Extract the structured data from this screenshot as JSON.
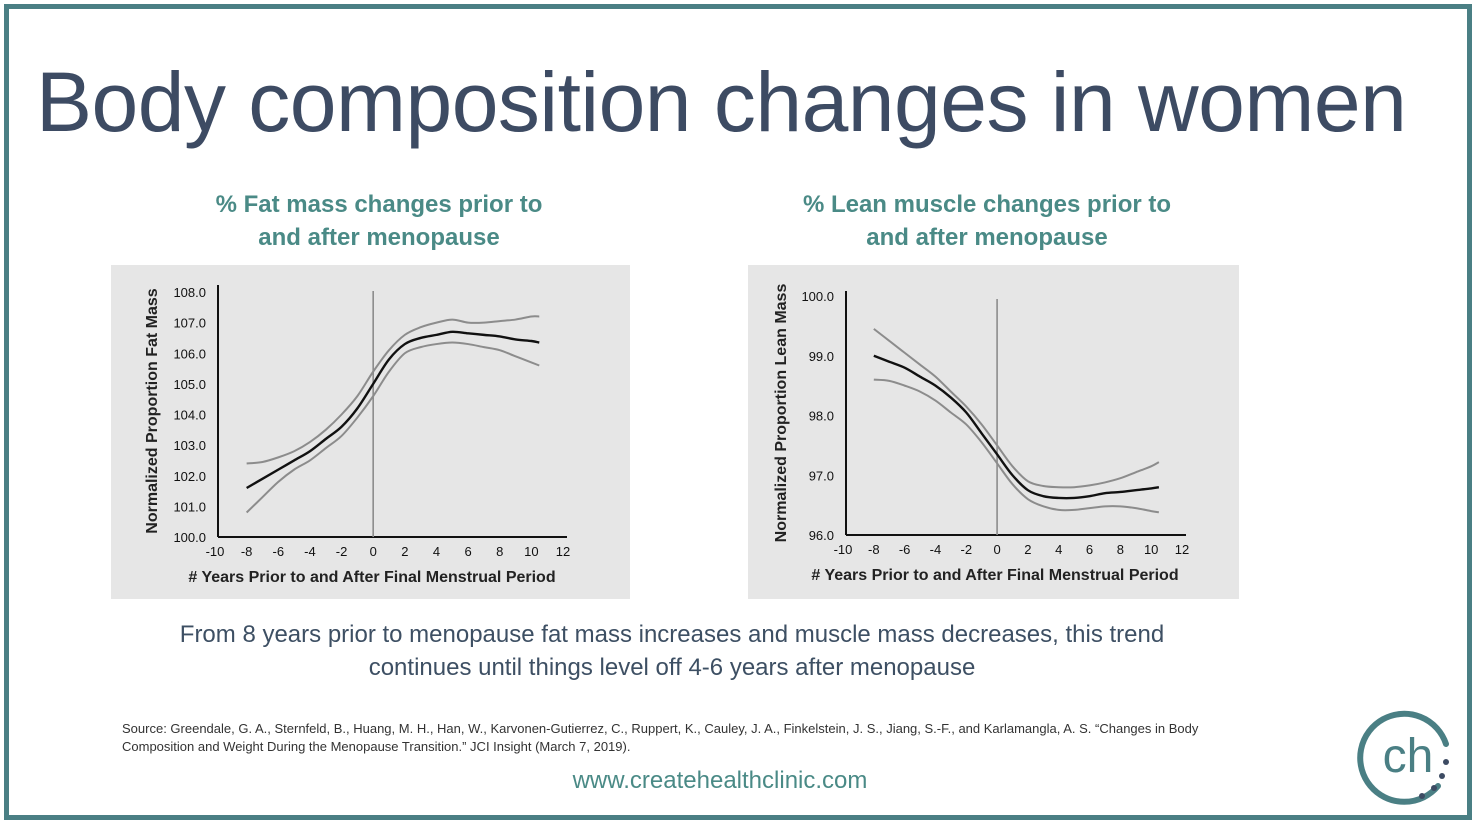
{
  "slide": {
    "title": "Body composition changes in women",
    "summary_lines": [
      "From 8 years prior to menopause fat mass increases and muscle mass decreases, this trend",
      "continues until things level off 4-6 years after menopause"
    ],
    "source_lines": [
      "Source: Greendale, G. A., Sternfeld, B., Huang, M. H., Han, W., Karvonen-Gutierrez, C., Ruppert, K., Cauley, J. A., Finkelstein, J. S., Jiang, S.-F., and Karlamangla, A. S. “Changes in Body",
      "Composition and Weight During the Menopause Transition.” JCI Insight (March 7, 2019)."
    ],
    "website": "www.createhealthclinic.com",
    "logo_text": "ch",
    "colors": {
      "border": "#4a7f84",
      "title": "#3d4b63",
      "accent": "#4a8a86",
      "chart_bg": "#e6e6e6"
    },
    "logo_icon": "ch-circle-logo-icon"
  },
  "chart_data": [
    {
      "type": "line",
      "title_lines": [
        "% Fat mass changes prior to",
        "and after menopause"
      ],
      "xlabel": "# Years Prior to and After Final Menstrual Period",
      "ylabel": "Normalized Proportion Fat Mass",
      "xlim": [
        -10,
        12
      ],
      "ylim": [
        100.0,
        108.0
      ],
      "x_ticks": [
        "-10",
        "-8",
        "-6",
        "-4",
        "-2",
        "0",
        "2",
        "4",
        "6",
        "8",
        "10",
        "12"
      ],
      "y_ticks": [
        "100.0",
        "101.0",
        "102.0",
        "103.0",
        "104.0",
        "105.0",
        "106.0",
        "107.0",
        "108.0"
      ],
      "reference_line_x": 0,
      "series": [
        {
          "role": "estimate",
          "color": "#111111",
          "x": [
            -8,
            -7,
            -6,
            -5,
            -4,
            -3,
            -2,
            -1,
            0,
            1,
            2,
            3,
            4,
            5,
            6,
            7,
            8,
            9,
            10,
            10.5
          ],
          "y": [
            101.6,
            101.9,
            102.2,
            102.5,
            102.8,
            103.2,
            103.6,
            104.2,
            105.0,
            105.8,
            106.3,
            106.5,
            106.6,
            106.7,
            106.65,
            106.6,
            106.55,
            106.45,
            106.4,
            106.35
          ]
        },
        {
          "role": "upper-ci",
          "color": "#8c8c8c",
          "x": [
            -8,
            -7,
            -6,
            -5,
            -4,
            -3,
            -2,
            -1,
            0,
            1,
            2,
            3,
            4,
            5,
            6,
            7,
            8,
            9,
            10,
            10.5
          ],
          "y": [
            102.4,
            102.45,
            102.6,
            102.8,
            103.1,
            103.5,
            104.0,
            104.6,
            105.4,
            106.1,
            106.6,
            106.85,
            107.0,
            107.1,
            107.0,
            107.0,
            107.05,
            107.1,
            107.2,
            107.2
          ]
        },
        {
          "role": "lower-ci",
          "color": "#8c8c8c",
          "x": [
            -8,
            -7,
            -6,
            -5,
            -4,
            -3,
            -2,
            -1,
            0,
            1,
            2,
            3,
            4,
            5,
            6,
            7,
            8,
            9,
            10,
            10.5
          ],
          "y": [
            100.8,
            101.3,
            101.8,
            102.2,
            102.5,
            102.9,
            103.3,
            103.9,
            104.6,
            105.4,
            106.0,
            106.2,
            106.3,
            106.35,
            106.3,
            106.2,
            106.1,
            105.9,
            105.7,
            105.6
          ]
        }
      ]
    },
    {
      "type": "line",
      "title_lines": [
        "% Lean muscle changes prior to",
        "and after menopause"
      ],
      "xlabel": "# Years Prior to and After Final Menstrual Period",
      "ylabel": "Normalized Proportion Lean Mass",
      "xlim": [
        -10,
        12
      ],
      "ylim": [
        96.0,
        100.0
      ],
      "x_ticks": [
        "-10",
        "-8",
        "-6",
        "-4",
        "-2",
        "0",
        "2",
        "4",
        "6",
        "8",
        "10",
        "12"
      ],
      "y_ticks": [
        "96.0",
        "97.0",
        "98.0",
        "99.0",
        "100.0"
      ],
      "reference_line_x": 0,
      "series": [
        {
          "role": "estimate",
          "color": "#111111",
          "x": [
            -8,
            -7,
            -6,
            -5,
            -4,
            -3,
            -2,
            -1,
            0,
            1,
            2,
            3,
            4,
            5,
            6,
            7,
            8,
            9,
            10,
            10.5
          ],
          "y": [
            99.0,
            98.9,
            98.8,
            98.65,
            98.5,
            98.3,
            98.05,
            97.7,
            97.35,
            97.0,
            96.75,
            96.65,
            96.62,
            96.62,
            96.65,
            96.7,
            96.72,
            96.75,
            96.78,
            96.8
          ]
        },
        {
          "role": "upper-ci",
          "color": "#8c8c8c",
          "x": [
            -8,
            -7,
            -6,
            -5,
            -4,
            -3,
            -2,
            -1,
            0,
            1,
            2,
            3,
            4,
            5,
            6,
            7,
            8,
            9,
            10,
            10.5
          ],
          "y": [
            99.45,
            99.25,
            99.05,
            98.85,
            98.65,
            98.4,
            98.15,
            97.85,
            97.5,
            97.15,
            96.9,
            96.82,
            96.8,
            96.8,
            96.83,
            96.88,
            96.95,
            97.05,
            97.15,
            97.22
          ]
        },
        {
          "role": "lower-ci",
          "color": "#8c8c8c",
          "x": [
            -8,
            -7,
            -6,
            -5,
            -4,
            -3,
            -2,
            -1,
            0,
            1,
            2,
            3,
            4,
            5,
            6,
            7,
            8,
            9,
            10,
            10.5
          ],
          "y": [
            98.6,
            98.58,
            98.5,
            98.4,
            98.25,
            98.05,
            97.85,
            97.55,
            97.2,
            96.85,
            96.6,
            96.48,
            96.42,
            96.42,
            96.45,
            96.48,
            96.48,
            96.45,
            96.4,
            96.38
          ]
        }
      ]
    }
  ]
}
